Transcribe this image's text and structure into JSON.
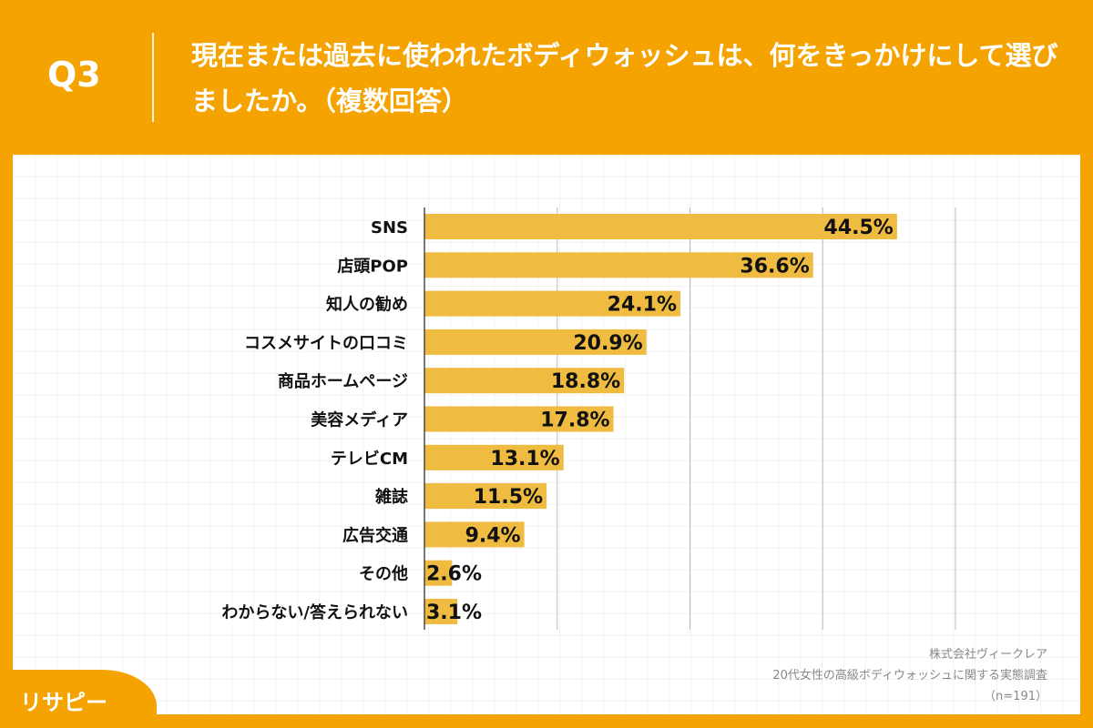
{
  "header": {
    "q": "Q3",
    "title": "現在または過去に使われたボディウォッシュは、何をきっかけにして選びましたか。（複数回答）"
  },
  "chart_data": {
    "type": "bar",
    "orientation": "horizontal",
    "categories": [
      "SNS",
      "店頭POP",
      "知人の勧め",
      "コスメサイトの口コミ",
      "商品ホームページ",
      "美容メディア",
      "テレビCM",
      "雑誌",
      "広告交通",
      "その他",
      "わからない/答えられない"
    ],
    "values": [
      44.5,
      36.6,
      24.1,
      20.9,
      18.8,
      17.8,
      13.1,
      11.5,
      9.4,
      2.6,
      3.1
    ],
    "labels": [
      "44.5%",
      "36.6%",
      "24.1%",
      "20.9%",
      "18.8%",
      "17.8%",
      "13.1%",
      "11.5%",
      "9.4%",
      "2.6%",
      "3.1%"
    ],
    "xlim": [
      0,
      50
    ],
    "grid": true,
    "gridlines": [
      12.5,
      25,
      37.5,
      50
    ],
    "bar_color": "#efbb40"
  },
  "source": {
    "company": "株式会社ヴィークレア",
    "survey": "20代女性の高級ボディウォッシュに関する実態調査",
    "n": "（n=191）"
  },
  "logo": {
    "text": "リサピー"
  },
  "colors": {
    "brand": "#f5a300"
  }
}
